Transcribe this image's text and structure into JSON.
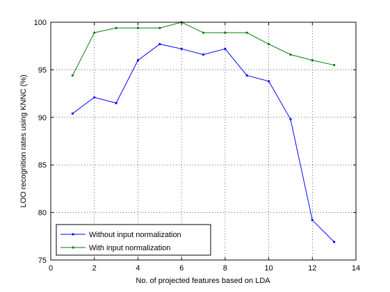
{
  "chart_data": {
    "type": "line",
    "xlabel": "No. of projected features based on LDA",
    "ylabel": "LOO recognition rates using KNNC (%)",
    "xlim": [
      0,
      14
    ],
    "ylim": [
      75,
      100
    ],
    "xticks": [
      0,
      2,
      4,
      6,
      8,
      10,
      12,
      14
    ],
    "yticks": [
      75,
      80,
      85,
      90,
      95,
      100
    ],
    "grid": true,
    "legend_position": "bottom-left",
    "x": [
      1,
      2,
      3,
      4,
      5,
      6,
      7,
      8,
      9,
      10,
      11,
      12,
      13
    ],
    "series": [
      {
        "name": "Without input normalization",
        "color": "#0000ff",
        "values": [
          90.4,
          92.1,
          91.5,
          96.0,
          97.7,
          97.2,
          96.6,
          97.2,
          94.4,
          93.8,
          89.8,
          79.2,
          76.9
        ]
      },
      {
        "name": "With input normalization",
        "color": "#007f00",
        "values": [
          94.4,
          98.9,
          99.4,
          99.4,
          99.4,
          100.0,
          98.9,
          98.9,
          98.9,
          97.7,
          96.6,
          96.0,
          95.5
        ]
      }
    ]
  }
}
